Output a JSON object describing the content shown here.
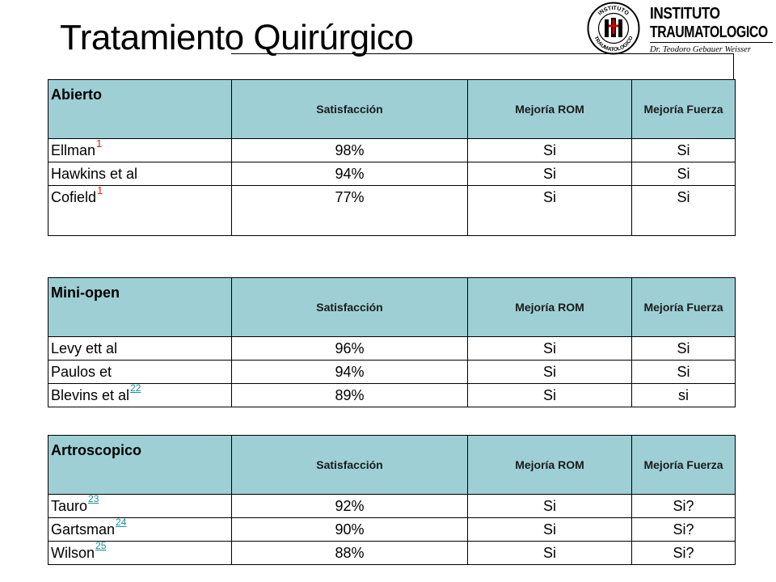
{
  "title": "Tratamiento Quirúrgico",
  "logo": {
    "seal_text_top": "INSTITUTO",
    "seal_text_bottom": "TRAUMATOLOGICO",
    "line1": "INSTITUTO",
    "line2": "TRAUMATOLOGICO",
    "line3": "Dr. Teodoro Gebauer Weisser"
  },
  "colors": {
    "header_bg": "#9ecfd4",
    "superscript_red": "#e8141c",
    "ref_link": "#1a8f8f"
  },
  "tables": [
    {
      "header": {
        "group": "Abierto",
        "col1": "Satisfacción",
        "col2": "Mejoría ROM",
        "col3": "Mejoría Fuerza"
      },
      "rows": [
        {
          "name": "Ellman",
          "sup": "1",
          "sat": "98%",
          "rom": "Si",
          "fuerza": "Si"
        },
        {
          "name": "Hawkins et al",
          "sup": "",
          "sat": "94%",
          "rom": "Si",
          "fuerza": "Si"
        },
        {
          "name": "Cofield",
          "sup": "1",
          "sat": "77%",
          "rom": "Si",
          "fuerza": "Si"
        }
      ]
    },
    {
      "header": {
        "group": "Mini-open",
        "col1": "Satisfacción",
        "col2": "Mejoría ROM",
        "col3": "Mejoría Fuerza"
      },
      "rows": [
        {
          "name": "Levy ett al",
          "sup": "",
          "sat": "96%",
          "rom": "Si",
          "fuerza": "Si"
        },
        {
          "name": "Paulos et",
          "sup": "",
          "sat": "94%",
          "rom": "Si",
          "fuerza": "Si"
        },
        {
          "name": "Blevins et al",
          "sup": "22",
          "sat": "89%",
          "rom": "Si",
          "fuerza": "si"
        }
      ]
    },
    {
      "header": {
        "group": "Artroscopico",
        "col1": "Satisfacción",
        "col2": "Mejoría ROM",
        "col3": "Mejoría Fuerza"
      },
      "rows": [
        {
          "name": "Tauro",
          "sup": "23",
          "sat": "92%",
          "rom": "Si",
          "fuerza": "Si?"
        },
        {
          "name": "Gartsman",
          "sup": "24",
          "sat": "90%",
          "rom": "Si",
          "fuerza": "Si?"
        },
        {
          "name": "Wilson",
          "sup": "25",
          "sat": "88%",
          "rom": "Si",
          "fuerza": "Si?"
        }
      ]
    }
  ]
}
